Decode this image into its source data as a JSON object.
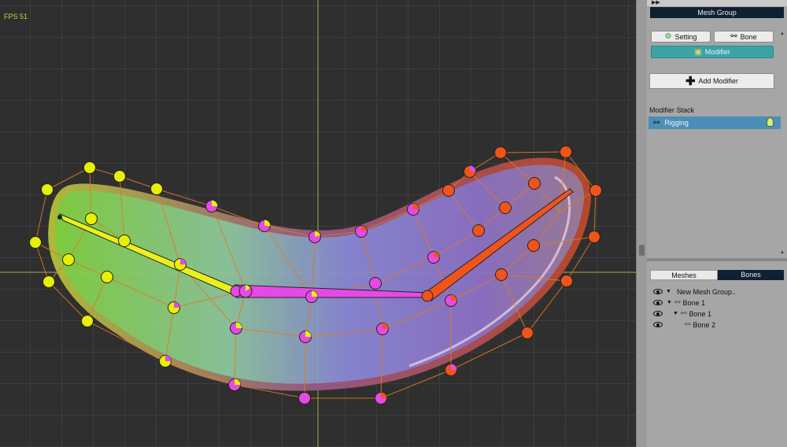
{
  "viewport": {
    "fps": "FPS 51"
  },
  "panel": {
    "header": "Mesh Group",
    "setting_label": "Setting",
    "bone_label": "Bone",
    "modifier_label": "Modifier",
    "add_modifier_label": "Add Modifier",
    "stack_label": "Modifier Stack",
    "stack_items": [
      {
        "label": "Rigging"
      }
    ],
    "tabs": {
      "meshes": "Meshes",
      "bones": "Bones"
    },
    "tree": {
      "root": "New Mesh Group..",
      "nodes": [
        {
          "label": "Bone 1"
        },
        {
          "label": "Bone 1"
        },
        {
          "label": "Bone 2"
        }
      ]
    }
  },
  "colors": {
    "accent": "#38a4a6",
    "header_bg": "#0f2033",
    "selected_row": "#4b8fb8"
  }
}
